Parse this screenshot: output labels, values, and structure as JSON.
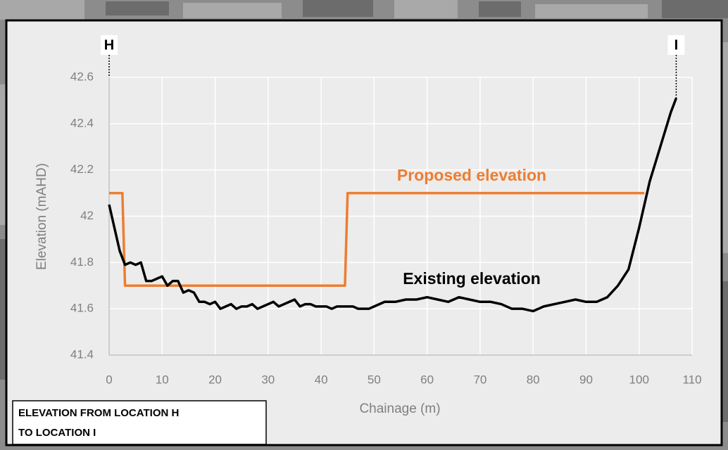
{
  "chart_data": {
    "type": "line",
    "title": [
      "ELEVATION FROM LOCATION H",
      "TO LOCATION I"
    ],
    "x_label": "Chainage (m)",
    "y_label": "Elevation (mAHD)",
    "xlim": [
      0,
      110
    ],
    "ylim": [
      41.4,
      42.6
    ],
    "xticks": [
      0,
      10,
      20,
      30,
      40,
      50,
      60,
      70,
      80,
      90,
      100,
      110
    ],
    "yticks": [
      41.4,
      41.6,
      41.8,
      42,
      42.2,
      42.4,
      42.6
    ],
    "grid": true,
    "markers": [
      {
        "label": "H",
        "x": 0
      },
      {
        "label": "I",
        "x": 107
      }
    ],
    "series": [
      {
        "name": "Proposed elevation",
        "color": "#ed7d31",
        "x": [
          0,
          2.5,
          3,
          44.5,
          45,
          101
        ],
        "values": [
          42.1,
          42.1,
          41.7,
          41.7,
          42.1,
          42.1
        ]
      },
      {
        "name": "Existing elevation",
        "color": "#000000",
        "x": [
          0,
          1,
          2,
          3,
          4,
          5,
          6,
          7,
          8,
          9,
          10,
          11,
          12,
          13,
          14,
          15,
          16,
          17,
          18,
          19,
          20,
          21,
          22,
          23,
          24,
          25,
          26,
          27,
          28,
          29,
          30,
          31,
          32,
          33,
          34,
          35,
          36,
          37,
          38,
          39,
          40,
          41,
          42,
          43,
          44,
          45,
          46,
          47,
          48,
          49,
          50,
          52,
          54,
          56,
          58,
          60,
          62,
          64,
          66,
          68,
          70,
          72,
          74,
          76,
          78,
          80,
          82,
          84,
          86,
          88,
          90,
          92,
          94,
          96,
          98,
          100,
          102,
          104,
          106,
          107
        ],
        "values": [
          42.05,
          41.95,
          41.85,
          41.79,
          41.8,
          41.79,
          41.8,
          41.72,
          41.72,
          41.73,
          41.74,
          41.7,
          41.72,
          41.72,
          41.67,
          41.68,
          41.67,
          41.63,
          41.63,
          41.62,
          41.63,
          41.6,
          41.61,
          41.62,
          41.6,
          41.61,
          41.61,
          41.62,
          41.6,
          41.61,
          41.62,
          41.63,
          41.61,
          41.62,
          41.63,
          41.64,
          41.61,
          41.62,
          41.62,
          41.61,
          41.61,
          41.61,
          41.6,
          41.61,
          41.61,
          41.61,
          41.61,
          41.6,
          41.6,
          41.6,
          41.61,
          41.63,
          41.63,
          41.64,
          41.64,
          41.65,
          41.64,
          41.63,
          41.65,
          41.64,
          41.63,
          41.63,
          41.62,
          41.6,
          41.6,
          41.59,
          41.61,
          41.62,
          41.63,
          41.64,
          41.63,
          41.63,
          41.65,
          41.7,
          41.77,
          41.95,
          42.15,
          42.3,
          42.45,
          42.51
        ]
      }
    ]
  }
}
